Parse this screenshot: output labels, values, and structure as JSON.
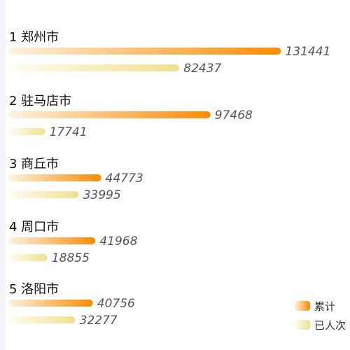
{
  "chart_data": {
    "type": "bar",
    "orientation": "horizontal",
    "categories": [
      "1 郑州市",
      "2 驻马店市",
      "3 商丘市",
      "4 周口市",
      "5 洛阳市"
    ],
    "series": [
      {
        "name": "累计",
        "values": [
          131441,
          97468,
          44773,
          41968,
          40756
        ]
      },
      {
        "name": "已人次",
        "values": [
          82437,
          17741,
          33995,
          18855,
          32277
        ]
      }
    ],
    "xlim": [
      0,
      135000
    ],
    "legend_position": "bottom-right",
    "grid": false
  },
  "colors": {
    "series_1_start": "#fff3e0",
    "series_1_end": "#ff8a00",
    "series_2_start": "#fffdf2",
    "series_2_end": "#f0e08c",
    "label_text": "#111111",
    "value_text": "#555555"
  }
}
